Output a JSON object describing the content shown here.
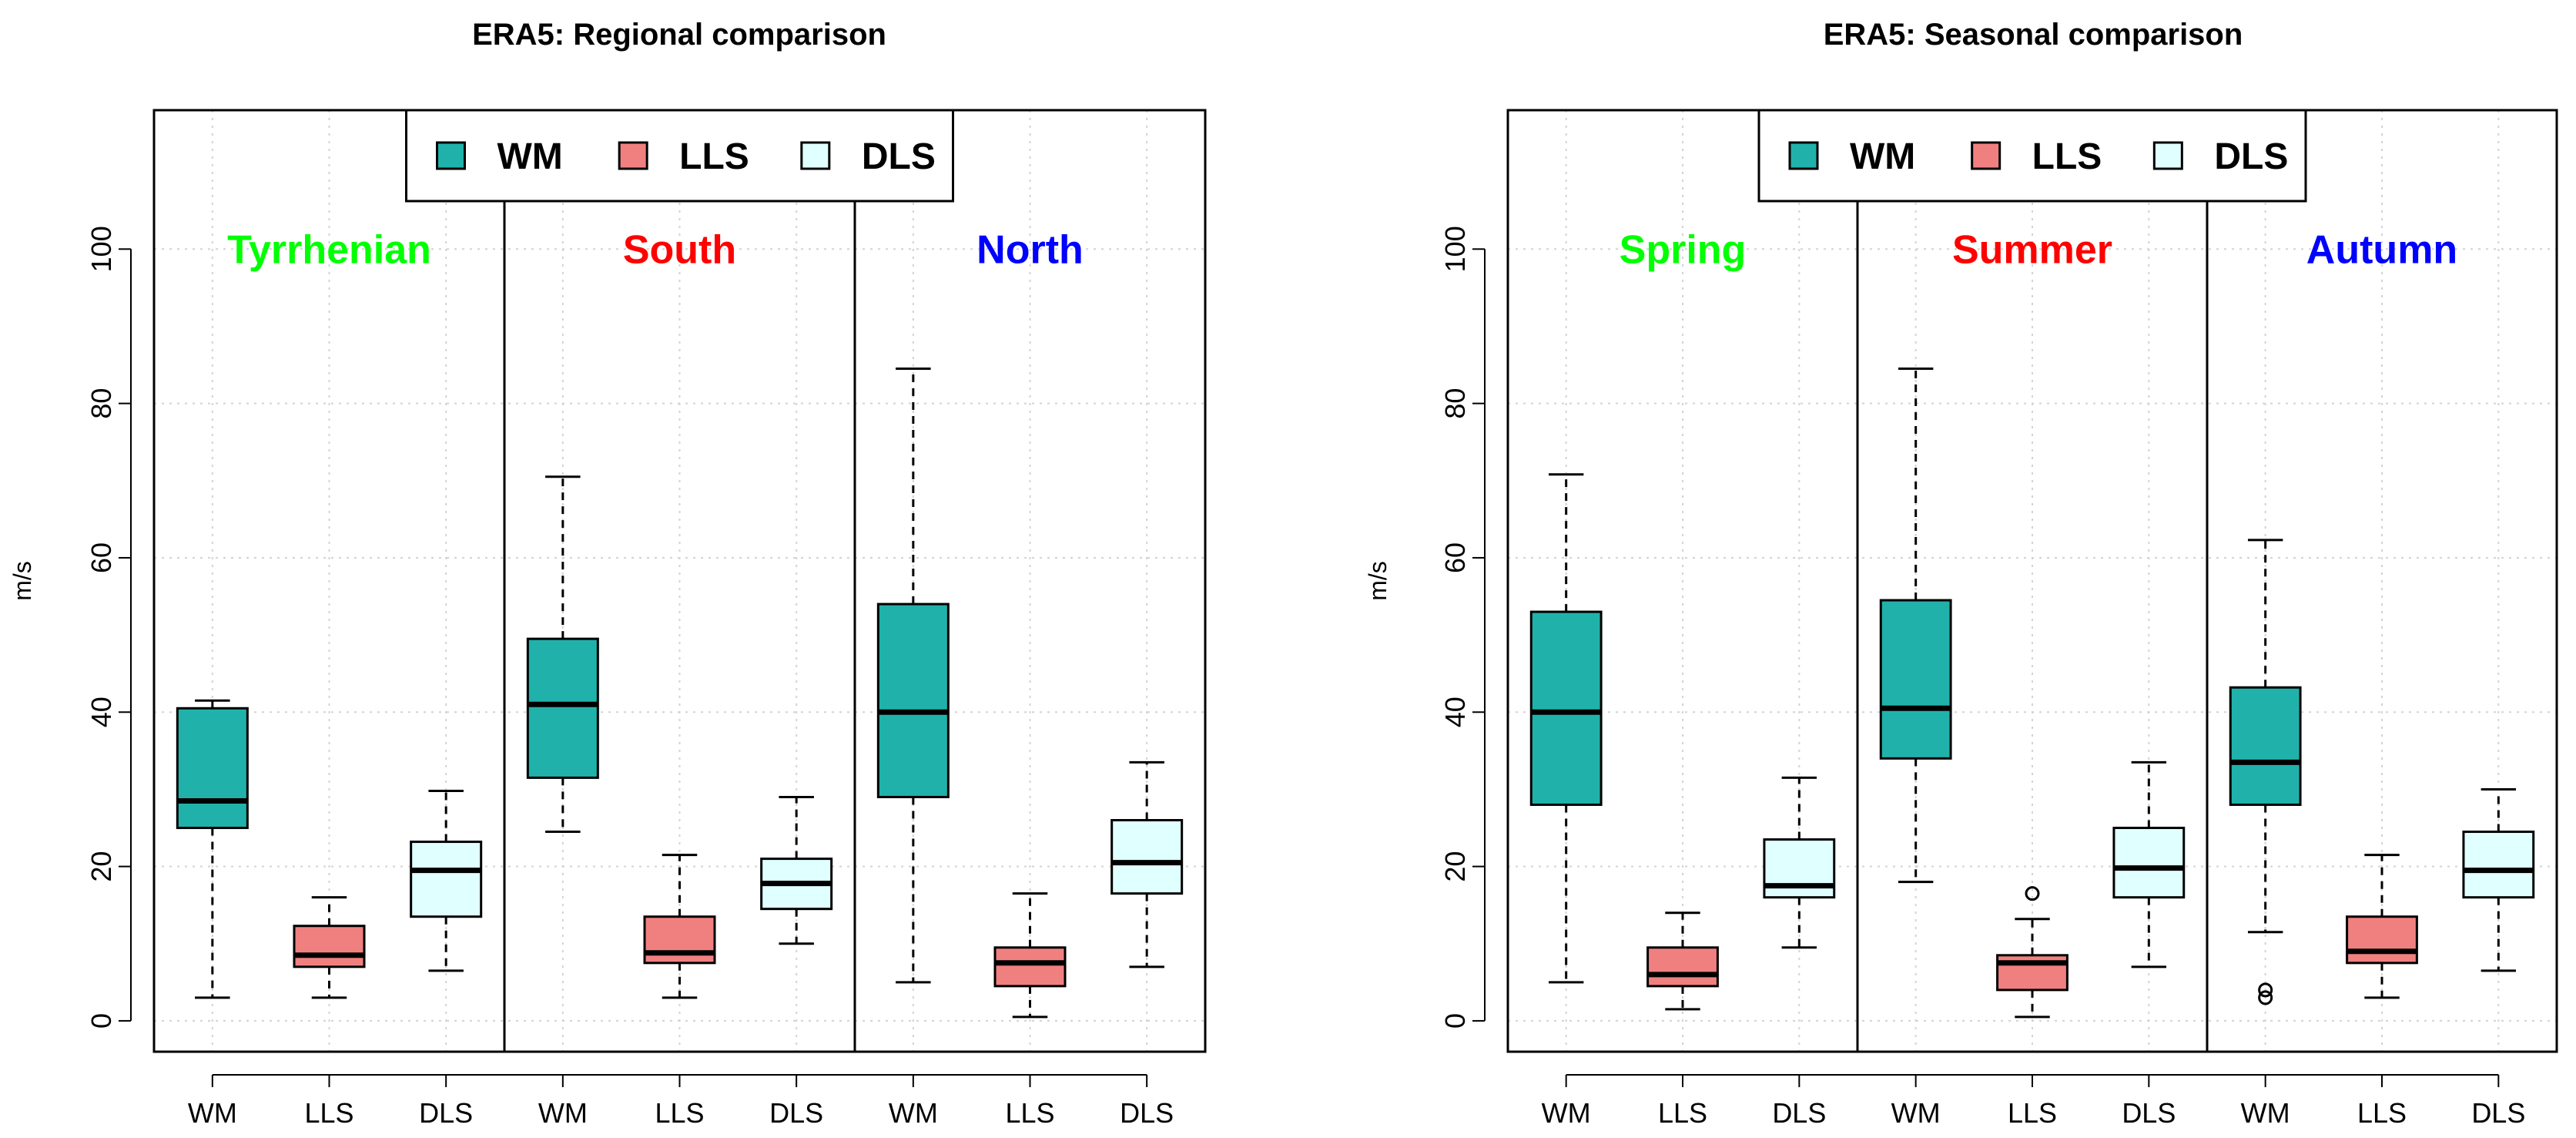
{
  "chart_data": [
    {
      "type": "boxplot",
      "title": "ERA5: Regional comparison",
      "ylabel": "m/s",
      "xlabel": "",
      "ylim": [
        -4,
        118
      ],
      "yticks": [
        0,
        20,
        40,
        60,
        80,
        100
      ],
      "grid": true,
      "legend": {
        "position": "top-center",
        "entries": [
          "WM",
          "LLS",
          "DLS"
        ]
      },
      "series_colors": {
        "WM": "#20B2AA",
        "LLS": "#F08080",
        "DLS": "#E0FFFF"
      },
      "groups": [
        {
          "label": "Tyrrhenian",
          "color": "#00FF00",
          "boxes": [
            {
              "name": "WM",
              "whisker_low": 3,
              "q1": 25,
              "median": 28.5,
              "q3": 40.5,
              "whisker_high": 41.5,
              "outliers": []
            },
            {
              "name": "LLS",
              "whisker_low": 3,
              "q1": 7,
              "median": 8.5,
              "q3": 12.3,
              "whisker_high": 16,
              "outliers": []
            },
            {
              "name": "DLS",
              "whisker_low": 6.5,
              "q1": 13.5,
              "median": 19.5,
              "q3": 23.2,
              "whisker_high": 29.8,
              "outliers": []
            }
          ]
        },
        {
          "label": "South",
          "color": "#FF0000",
          "boxes": [
            {
              "name": "WM",
              "whisker_low": 24.5,
              "q1": 31.5,
              "median": 41,
              "q3": 49.5,
              "whisker_high": 70.5,
              "outliers": []
            },
            {
              "name": "LLS",
              "whisker_low": 3,
              "q1": 7.5,
              "median": 8.8,
              "q3": 13.5,
              "whisker_high": 21.5,
              "outliers": []
            },
            {
              "name": "DLS",
              "whisker_low": 10,
              "q1": 14.5,
              "median": 17.8,
              "q3": 21,
              "whisker_high": 29,
              "outliers": []
            }
          ]
        },
        {
          "label": "North",
          "color": "#0000FF",
          "boxes": [
            {
              "name": "WM",
              "whisker_low": 5,
              "q1": 29,
              "median": 40,
              "q3": 54,
              "whisker_high": 84.5,
              "outliers": []
            },
            {
              "name": "LLS",
              "whisker_low": 0.5,
              "q1": 4.5,
              "median": 7.5,
              "q3": 9.5,
              "whisker_high": 16.5,
              "outliers": []
            },
            {
              "name": "DLS",
              "whisker_low": 7,
              "q1": 16.5,
              "median": 20.5,
              "q3": 26,
              "whisker_high": 33.5,
              "outliers": []
            }
          ]
        }
      ]
    },
    {
      "type": "boxplot",
      "title": "ERA5: Seasonal comparison",
      "ylabel": "m/s",
      "xlabel": "",
      "ylim": [
        -4,
        118
      ],
      "yticks": [
        0,
        20,
        40,
        60,
        80,
        100
      ],
      "grid": true,
      "legend": {
        "position": "top-center",
        "entries": [
          "WM",
          "LLS",
          "DLS"
        ]
      },
      "series_colors": {
        "WM": "#20B2AA",
        "LLS": "#F08080",
        "DLS": "#E0FFFF"
      },
      "groups": [
        {
          "label": "Spring",
          "color": "#00FF00",
          "boxes": [
            {
              "name": "WM",
              "whisker_low": 5,
              "q1": 28,
              "median": 40,
              "q3": 53,
              "whisker_high": 70.8,
              "outliers": []
            },
            {
              "name": "LLS",
              "whisker_low": 1.5,
              "q1": 4.5,
              "median": 6,
              "q3": 9.5,
              "whisker_high": 14,
              "outliers": []
            },
            {
              "name": "DLS",
              "whisker_low": 9.5,
              "q1": 16,
              "median": 17.5,
              "q3": 23.5,
              "whisker_high": 31.5,
              "outliers": []
            }
          ]
        },
        {
          "label": "Summer",
          "color": "#FF0000",
          "boxes": [
            {
              "name": "WM",
              "whisker_low": 18,
              "q1": 34,
              "median": 40.5,
              "q3": 54.5,
              "whisker_high": 84.5,
              "outliers": []
            },
            {
              "name": "LLS",
              "whisker_low": 0.5,
              "q1": 4,
              "median": 7.5,
              "q3": 8.5,
              "whisker_high": 13.2,
              "outliers": [
                16.5
              ]
            },
            {
              "name": "DLS",
              "whisker_low": 7,
              "q1": 16,
              "median": 19.8,
              "q3": 25,
              "whisker_high": 33.5,
              "outliers": []
            }
          ]
        },
        {
          "label": "Autumn",
          "color": "#0000FF",
          "boxes": [
            {
              "name": "WM",
              "whisker_low": 11.5,
              "q1": 28,
              "median": 33.5,
              "q3": 43.2,
              "whisker_high": 62.3,
              "outliers": [
                4,
                3
              ]
            },
            {
              "name": "LLS",
              "whisker_low": 3,
              "q1": 7.5,
              "median": 9,
              "q3": 13.5,
              "whisker_high": 21.5,
              "outliers": []
            },
            {
              "name": "DLS",
              "whisker_low": 6.5,
              "q1": 16,
              "median": 19.5,
              "q3": 24.5,
              "whisker_high": 30,
              "outliers": []
            }
          ]
        }
      ]
    }
  ]
}
